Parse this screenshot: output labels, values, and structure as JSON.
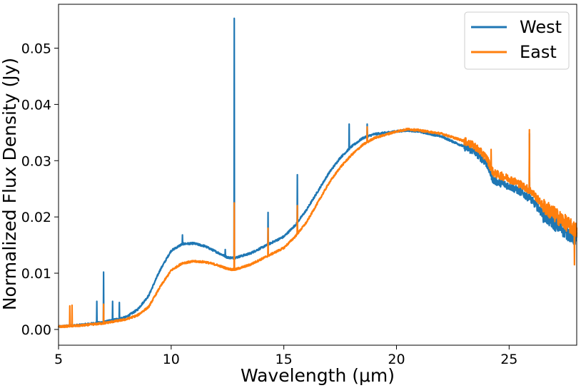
{
  "chart_data": {
    "type": "line",
    "title": "",
    "xlabel": "Wavelength (μm)",
    "ylabel": "Normalized Flux Density (Jy)",
    "xlim": [
      5,
      28
    ],
    "ylim": [
      -0.0028,
      0.0578
    ],
    "x_ticks": [
      5,
      10,
      15,
      20,
      25
    ],
    "x_tick_labels": [
      "5",
      "10",
      "15",
      "20",
      "25"
    ],
    "y_ticks": [
      0.0,
      0.01,
      0.02,
      0.03,
      0.04,
      0.05
    ],
    "y_tick_labels": [
      "0.00",
      "0.01",
      "0.02",
      "0.03",
      "0.04",
      "0.05"
    ],
    "grid": false,
    "legend_position": "top-right",
    "series": [
      {
        "name": "West",
        "color": "#1f77b4",
        "points": [
          [
            5.0,
            0.0005
          ],
          [
            6.0,
            0.0008
          ],
          [
            7.0,
            0.0013
          ],
          [
            8.0,
            0.0022
          ],
          [
            8.5,
            0.0035
          ],
          [
            9.0,
            0.006
          ],
          [
            9.5,
            0.0105
          ],
          [
            10.0,
            0.014
          ],
          [
            10.5,
            0.0152
          ],
          [
            11.0,
            0.0153
          ],
          [
            11.5,
            0.0148
          ],
          [
            12.0,
            0.0138
          ],
          [
            12.5,
            0.0128
          ],
          [
            12.8,
            0.0127
          ],
          [
            13.5,
            0.0135
          ],
          [
            14.0,
            0.0145
          ],
          [
            15.0,
            0.0165
          ],
          [
            15.5,
            0.0185
          ],
          [
            16.0,
            0.0212
          ],
          [
            16.5,
            0.0245
          ],
          [
            17.0,
            0.0278
          ],
          [
            17.5,
            0.0305
          ],
          [
            18.0,
            0.0325
          ],
          [
            18.5,
            0.034
          ],
          [
            19.0,
            0.0347
          ],
          [
            20.0,
            0.0352
          ],
          [
            20.5,
            0.0354
          ],
          [
            21.0,
            0.0352
          ],
          [
            22.0,
            0.0343
          ],
          [
            23.0,
            0.0325
          ],
          [
            23.5,
            0.0315
          ],
          [
            24.0,
            0.0295
          ],
          [
            24.3,
            0.0265
          ],
          [
            25.0,
            0.0255
          ],
          [
            25.5,
            0.0245
          ],
          [
            26.0,
            0.023
          ],
          [
            26.5,
            0.0205
          ],
          [
            27.0,
            0.019
          ],
          [
            27.5,
            0.0175
          ],
          [
            28.0,
            0.016
          ]
        ],
        "spikes": [
          [
            6.7,
            0.005
          ],
          [
            7.0,
            0.0102
          ],
          [
            7.4,
            0.005
          ],
          [
            7.7,
            0.0048
          ],
          [
            10.5,
            0.0168
          ],
          [
            12.4,
            0.0142
          ],
          [
            12.8,
            0.0553
          ],
          [
            14.3,
            0.0208
          ],
          [
            15.6,
            0.0275
          ],
          [
            17.9,
            0.0365
          ],
          [
            18.7,
            0.0365
          ],
          [
            25.9,
            0.0348
          ]
        ]
      },
      {
        "name": "East",
        "color": "#ff7f0e",
        "points": [
          [
            5.0,
            0.0005
          ],
          [
            6.0,
            0.0007
          ],
          [
            7.0,
            0.0011
          ],
          [
            8.0,
            0.0018
          ],
          [
            8.5,
            0.0025
          ],
          [
            9.0,
            0.004
          ],
          [
            9.5,
            0.0075
          ],
          [
            10.0,
            0.0105
          ],
          [
            10.5,
            0.0118
          ],
          [
            11.0,
            0.0121
          ],
          [
            11.5,
            0.012
          ],
          [
            12.0,
            0.0115
          ],
          [
            12.5,
            0.0108
          ],
          [
            12.8,
            0.0106
          ],
          [
            13.5,
            0.0115
          ],
          [
            14.0,
            0.0125
          ],
          [
            15.0,
            0.0145
          ],
          [
            15.5,
            0.0165
          ],
          [
            16.0,
            0.019
          ],
          [
            16.5,
            0.0225
          ],
          [
            17.0,
            0.026
          ],
          [
            17.5,
            0.0288
          ],
          [
            18.0,
            0.031
          ],
          [
            18.5,
            0.0328
          ],
          [
            19.0,
            0.034
          ],
          [
            20.0,
            0.0352
          ],
          [
            20.5,
            0.0356
          ],
          [
            21.0,
            0.0354
          ],
          [
            22.0,
            0.0348
          ],
          [
            23.0,
            0.0335
          ],
          [
            23.5,
            0.0325
          ],
          [
            24.0,
            0.0305
          ],
          [
            24.3,
            0.0278
          ],
          [
            25.0,
            0.0268
          ],
          [
            25.5,
            0.0258
          ],
          [
            26.0,
            0.0245
          ],
          [
            26.5,
            0.022
          ],
          [
            27.0,
            0.0205
          ],
          [
            27.5,
            0.019
          ],
          [
            28.0,
            0.0175
          ]
        ],
        "spikes": [
          [
            5.5,
            0.0042
          ],
          [
            5.6,
            0.0043
          ],
          [
            7.0,
            0.0045
          ],
          [
            12.8,
            0.0225
          ],
          [
            14.3,
            0.018
          ],
          [
            15.6,
            0.022
          ],
          [
            18.7,
            0.036
          ],
          [
            24.2,
            0.032
          ],
          [
            25.9,
            0.0355
          ],
          [
            27.9,
            0.0115
          ]
        ]
      }
    ]
  }
}
